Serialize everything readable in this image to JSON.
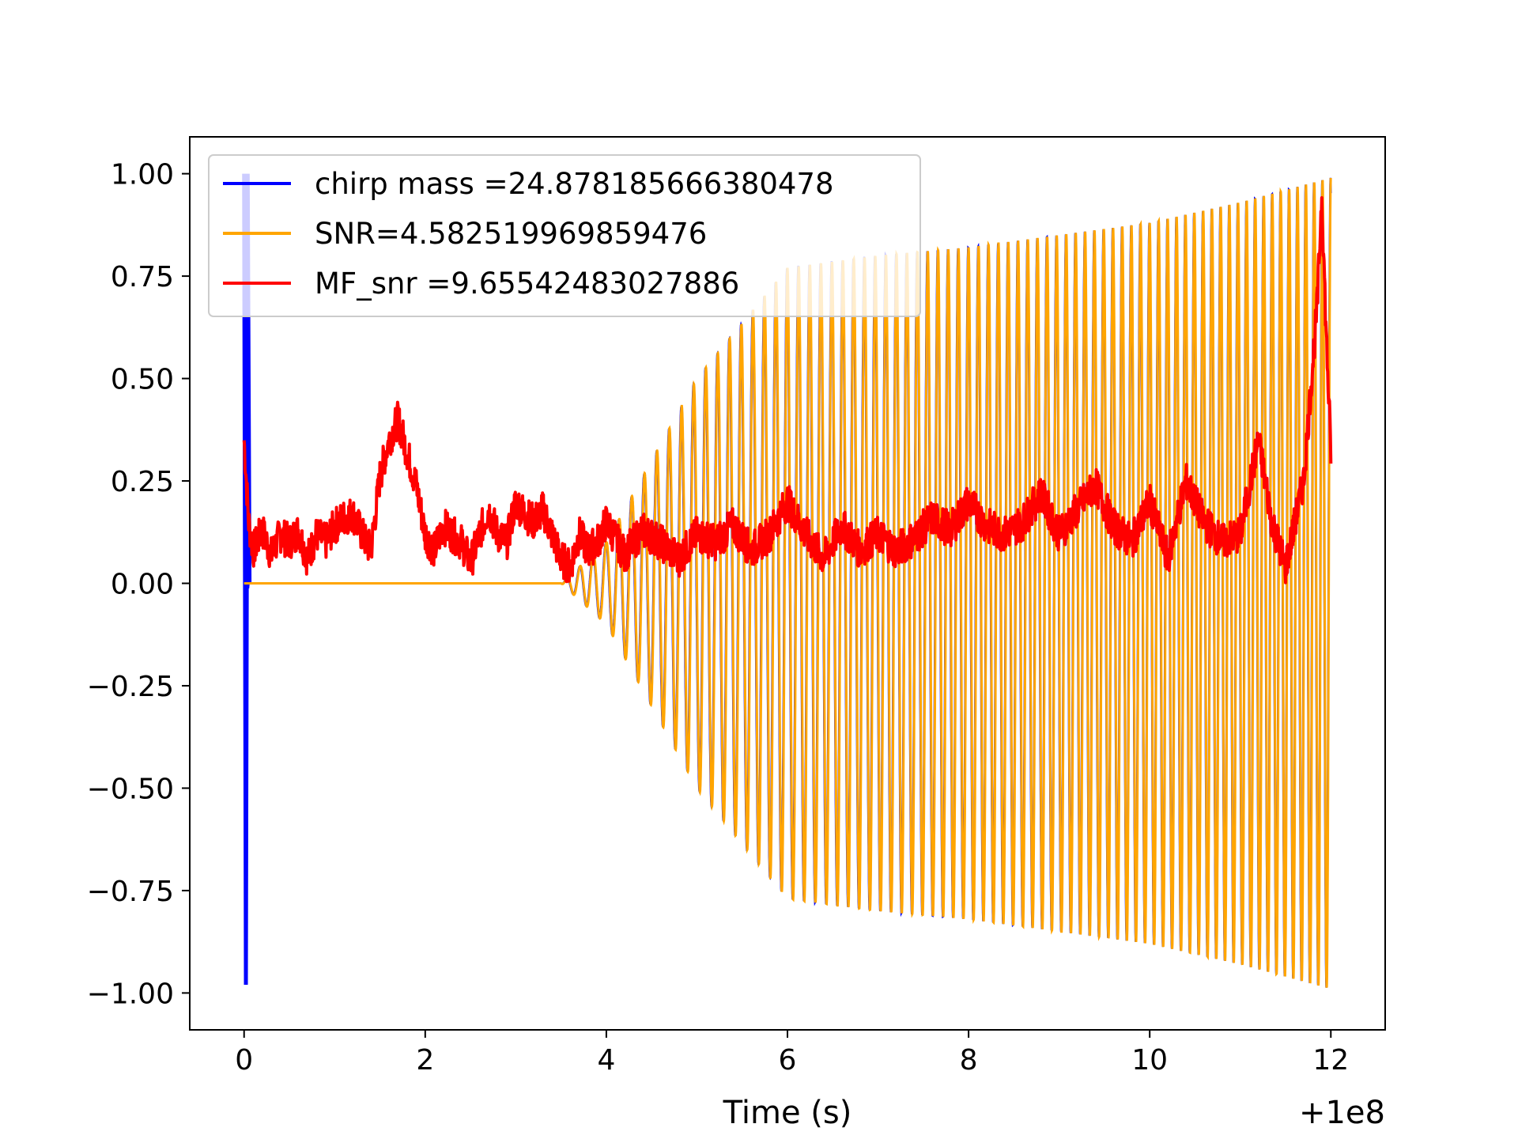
{
  "chart_data": {
    "type": "line",
    "title": "",
    "xlabel": "Time (s)",
    "ylabel": "",
    "x_offset_label": "+1e8",
    "xlim": [
      -0.6,
      12.6
    ],
    "ylim": [
      -1.09,
      1.09
    ],
    "x_ticks": [
      0,
      2,
      4,
      6,
      8,
      10,
      12
    ],
    "x_tick_labels": [
      "0",
      "2",
      "4",
      "6",
      "8",
      "10",
      "12"
    ],
    "y_ticks": [
      1.0,
      0.75,
      0.5,
      0.25,
      0.0,
      -0.25,
      -0.5,
      -0.75,
      -1.0
    ],
    "y_tick_labels": [
      "1.00",
      "0.75",
      "0.50",
      "0.25",
      "0.00",
      "−0.25",
      "−0.50",
      "−0.75",
      "−1.00"
    ],
    "grid": false,
    "legend_position": "upper left",
    "series": [
      {
        "name": "chirp mass =24.878185666380478",
        "color": "#0000ff",
        "envelope_t": [
          0,
          0.05,
          3.5,
          4.0,
          5.0,
          6.0,
          7.0,
          8.0,
          9.0,
          10.0,
          11.0,
          12.0
        ],
        "envelope_amp": [
          1.0,
          0.0,
          0.0,
          0.1,
          0.5,
          0.77,
          0.8,
          0.82,
          0.85,
          0.88,
          0.93,
          0.99
        ]
      },
      {
        "name": "SNR=4.582519969859476",
        "color": "#ffa500",
        "envelope_t": [
          0,
          3.5,
          4.0,
          5.0,
          6.0,
          7.0,
          8.0,
          9.0,
          10.0,
          11.0,
          12.0
        ],
        "envelope_amp": [
          0.0,
          0.0,
          0.1,
          0.5,
          0.77,
          0.8,
          0.82,
          0.85,
          0.88,
          0.93,
          0.99
        ]
      },
      {
        "name": "MF_snr =9.65542483027886",
        "color": "#ff0000",
        "t": [
          0,
          0.05,
          0.1,
          0.2,
          0.3,
          0.4,
          0.5,
          0.6,
          0.7,
          0.8,
          0.9,
          1.0,
          1.1,
          1.2,
          1.3,
          1.4,
          1.5,
          1.6,
          1.7,
          1.8,
          1.9,
          2.0,
          2.1,
          2.2,
          2.3,
          2.4,
          2.5,
          2.6,
          2.7,
          2.8,
          2.9,
          3.0,
          3.1,
          3.2,
          3.3,
          3.4,
          3.5,
          3.6,
          3.7,
          3.8,
          3.9,
          4.0,
          4.2,
          4.4,
          4.6,
          4.8,
          5.0,
          5.2,
          5.4,
          5.6,
          5.8,
          6.0,
          6.2,
          6.4,
          6.6,
          6.8,
          7.0,
          7.2,
          7.4,
          7.6,
          7.8,
          8.0,
          8.2,
          8.4,
          8.6,
          8.8,
          9.0,
          9.2,
          9.4,
          9.6,
          9.8,
          10.0,
          10.2,
          10.4,
          10.6,
          10.8,
          11.0,
          11.2,
          11.35,
          11.5,
          11.7,
          11.85,
          11.9,
          11.95,
          12.0
        ],
        "y": [
          0.35,
          0.15,
          0.08,
          0.13,
          0.07,
          0.12,
          0.1,
          0.13,
          0.06,
          0.12,
          0.1,
          0.14,
          0.16,
          0.17,
          0.12,
          0.08,
          0.26,
          0.35,
          0.4,
          0.32,
          0.24,
          0.12,
          0.08,
          0.14,
          0.12,
          0.1,
          0.05,
          0.12,
          0.18,
          0.12,
          0.1,
          0.2,
          0.17,
          0.15,
          0.18,
          0.12,
          0.06,
          0.04,
          0.12,
          0.08,
          0.1,
          0.15,
          0.07,
          0.13,
          0.1,
          0.06,
          0.12,
          0.1,
          0.14,
          0.08,
          0.12,
          0.2,
          0.12,
          0.06,
          0.14,
          0.08,
          0.12,
          0.08,
          0.11,
          0.16,
          0.13,
          0.2,
          0.14,
          0.12,
          0.15,
          0.22,
          0.12,
          0.18,
          0.24,
          0.14,
          0.1,
          0.2,
          0.06,
          0.25,
          0.15,
          0.1,
          0.12,
          0.35,
          0.15,
          0.04,
          0.25,
          0.68,
          0.95,
          0.6,
          0.32
        ]
      }
    ]
  }
}
